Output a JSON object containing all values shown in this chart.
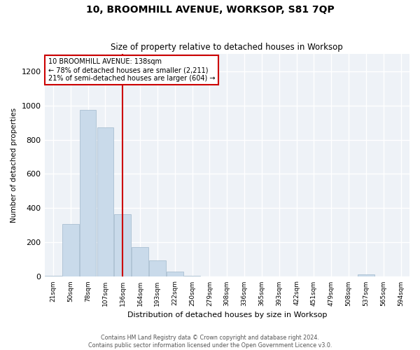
{
  "title": "10, BROOMHILL AVENUE, WORKSOP, S81 7QP",
  "subtitle": "Size of property relative to detached houses in Worksop",
  "xlabel": "Distribution of detached houses by size in Worksop",
  "ylabel": "Number of detached properties",
  "bar_color": "#c9daea",
  "bar_edge_color": "#a0b8cc",
  "background_color": "#eef2f7",
  "grid_color": "#ffffff",
  "annotation_line_color": "#cc0000",
  "annotation_box_color": "#cc0000",
  "property_bin_index": 4,
  "annotation_text_line1": "10 BROOMHILL AVENUE: 138sqm",
  "annotation_text_line2": "← 78% of detached houses are smaller (2,211)",
  "annotation_text_line3": "21% of semi-detached houses are larger (604) →",
  "bin_labels": [
    "21sqm",
    "50sqm",
    "78sqm",
    "107sqm",
    "136sqm",
    "164sqm",
    "193sqm",
    "222sqm",
    "250sqm",
    "279sqm",
    "308sqm",
    "336sqm",
    "365sqm",
    "393sqm",
    "422sqm",
    "451sqm",
    "479sqm",
    "508sqm",
    "537sqm",
    "565sqm",
    "594sqm"
  ],
  "values": [
    5,
    310,
    975,
    870,
    365,
    175,
    95,
    30,
    5,
    3,
    2,
    1,
    1,
    0,
    0,
    0,
    0,
    0,
    15,
    0,
    0
  ],
  "ylim": [
    0,
    1300
  ],
  "yticks": [
    0,
    200,
    400,
    600,
    800,
    1000,
    1200
  ],
  "footer_line1": "Contains HM Land Registry data © Crown copyright and database right 2024.",
  "footer_line2": "Contains public sector information licensed under the Open Government Licence v3.0."
}
